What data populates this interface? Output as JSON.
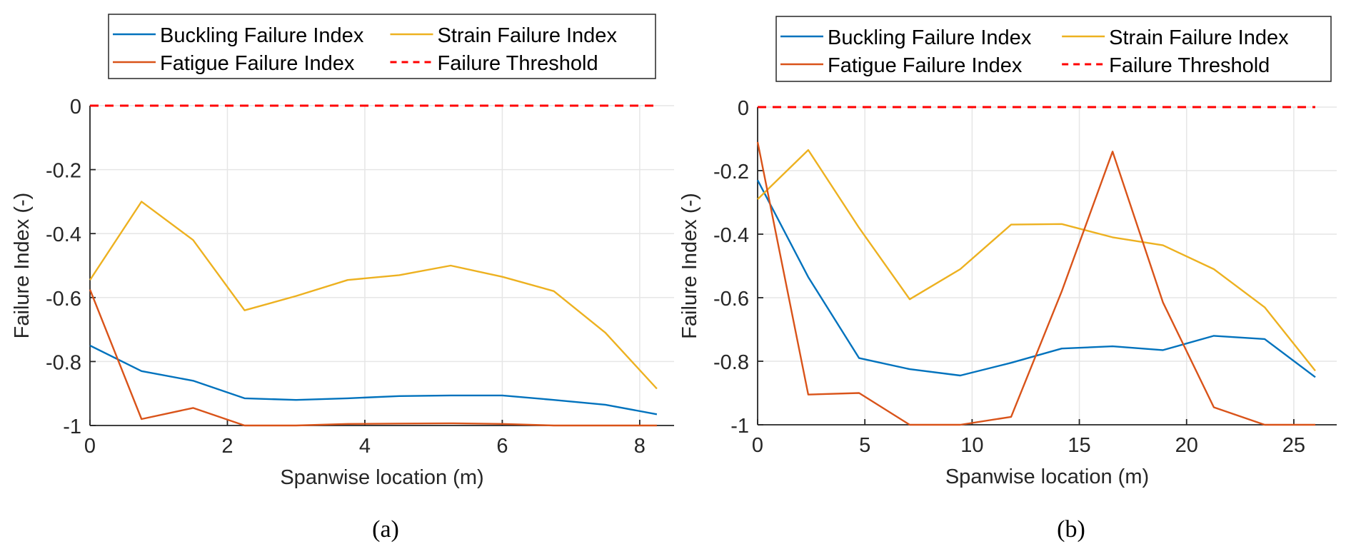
{
  "chart_data": [
    {
      "type": "line",
      "panel_label": "(a)",
      "title": "",
      "xlabel": "Spanwise location (m)",
      "ylabel": "Failure Index (-)",
      "xlim": [
        0,
        8.5
      ],
      "ylim": [
        -1,
        0
      ],
      "xticks": [
        0,
        2,
        4,
        6,
        8
      ],
      "xtick_labels": [
        "0",
        "2",
        "4",
        "6",
        "8"
      ],
      "yticks": [
        0,
        -0.2,
        -0.4,
        -0.6,
        -0.8,
        -1
      ],
      "ytick_labels": [
        "0",
        "-0.2",
        "-0.4",
        "-0.6",
        "-0.8",
        "-1"
      ],
      "grid": true,
      "legend_position": "top-outside",
      "x": [
        0,
        0.75,
        1.5,
        2.25,
        3.0,
        3.75,
        4.5,
        5.25,
        6.0,
        6.75,
        7.5,
        8.25
      ],
      "series": [
        {
          "name": "Buckling Failure Index",
          "color": "#0072BD",
          "style": "solid",
          "values": [
            -0.75,
            -0.83,
            -0.86,
            -0.915,
            -0.92,
            -0.915,
            -0.908,
            -0.906,
            -0.906,
            -0.92,
            -0.935,
            -0.965
          ]
        },
        {
          "name": "Strain Failure Index",
          "color": "#EDB120",
          "style": "solid",
          "values": [
            -0.545,
            -0.3,
            -0.42,
            -0.64,
            -0.595,
            -0.545,
            -0.53,
            -0.5,
            -0.535,
            -0.58,
            -0.71,
            -0.885
          ]
        },
        {
          "name": "Fatigue Failure Index",
          "color": "#D95319",
          "style": "solid",
          "values": [
            -0.575,
            -0.98,
            -0.945,
            -1.0,
            -1.0,
            -0.995,
            -0.994,
            -0.993,
            -0.995,
            -1.0,
            -1.0,
            -1.0
          ]
        },
        {
          "name": "Failure Threshold",
          "color": "#FF0000",
          "style": "dashed",
          "values": [
            0,
            0,
            0,
            0,
            0,
            0,
            0,
            0,
            0,
            0,
            0,
            0
          ]
        }
      ]
    },
    {
      "type": "line",
      "panel_label": "(b)",
      "title": "",
      "xlabel": "Spanwise location (m)",
      "ylabel": "Failure Index (-)",
      "xlim": [
        0,
        27
      ],
      "ylim": [
        -1,
        0
      ],
      "xticks": [
        0,
        5,
        10,
        15,
        20,
        25
      ],
      "xtick_labels": [
        "0",
        "5",
        "10",
        "15",
        "20",
        "25"
      ],
      "yticks": [
        0,
        -0.2,
        -0.4,
        -0.6,
        -0.8,
        -1
      ],
      "ytick_labels": [
        "0",
        "-0.2",
        "-0.4",
        "-0.6",
        "-0.8",
        "-1"
      ],
      "grid": true,
      "legend_position": "top-outside",
      "x": [
        0,
        2.36,
        4.73,
        7.09,
        9.45,
        11.82,
        14.18,
        16.55,
        18.9,
        21.27,
        23.64,
        26.0
      ],
      "series": [
        {
          "name": "Buckling Failure Index",
          "color": "#0072BD",
          "style": "solid",
          "values": [
            -0.23,
            -0.535,
            -0.79,
            -0.825,
            -0.845,
            -0.805,
            -0.76,
            -0.753,
            -0.765,
            -0.72,
            -0.73,
            -0.85
          ]
        },
        {
          "name": "Strain Failure Index",
          "color": "#EDB120",
          "style": "solid",
          "values": [
            -0.29,
            -0.135,
            -0.38,
            -0.605,
            -0.51,
            -0.37,
            -0.368,
            -0.41,
            -0.435,
            -0.51,
            -0.63,
            -0.83
          ]
        },
        {
          "name": "Fatigue Failure Index",
          "color": "#D95319",
          "style": "solid",
          "values": [
            -0.11,
            -0.905,
            -0.9,
            -1.0,
            -1.0,
            -0.975,
            -0.58,
            -0.14,
            -0.615,
            -0.945,
            -1.0,
            -1.0
          ]
        },
        {
          "name": "Failure Threshold",
          "color": "#FF0000",
          "style": "dashed",
          "values": [
            0,
            0,
            0,
            0,
            0,
            0,
            0,
            0,
            0,
            0,
            0,
            0
          ]
        }
      ]
    }
  ]
}
